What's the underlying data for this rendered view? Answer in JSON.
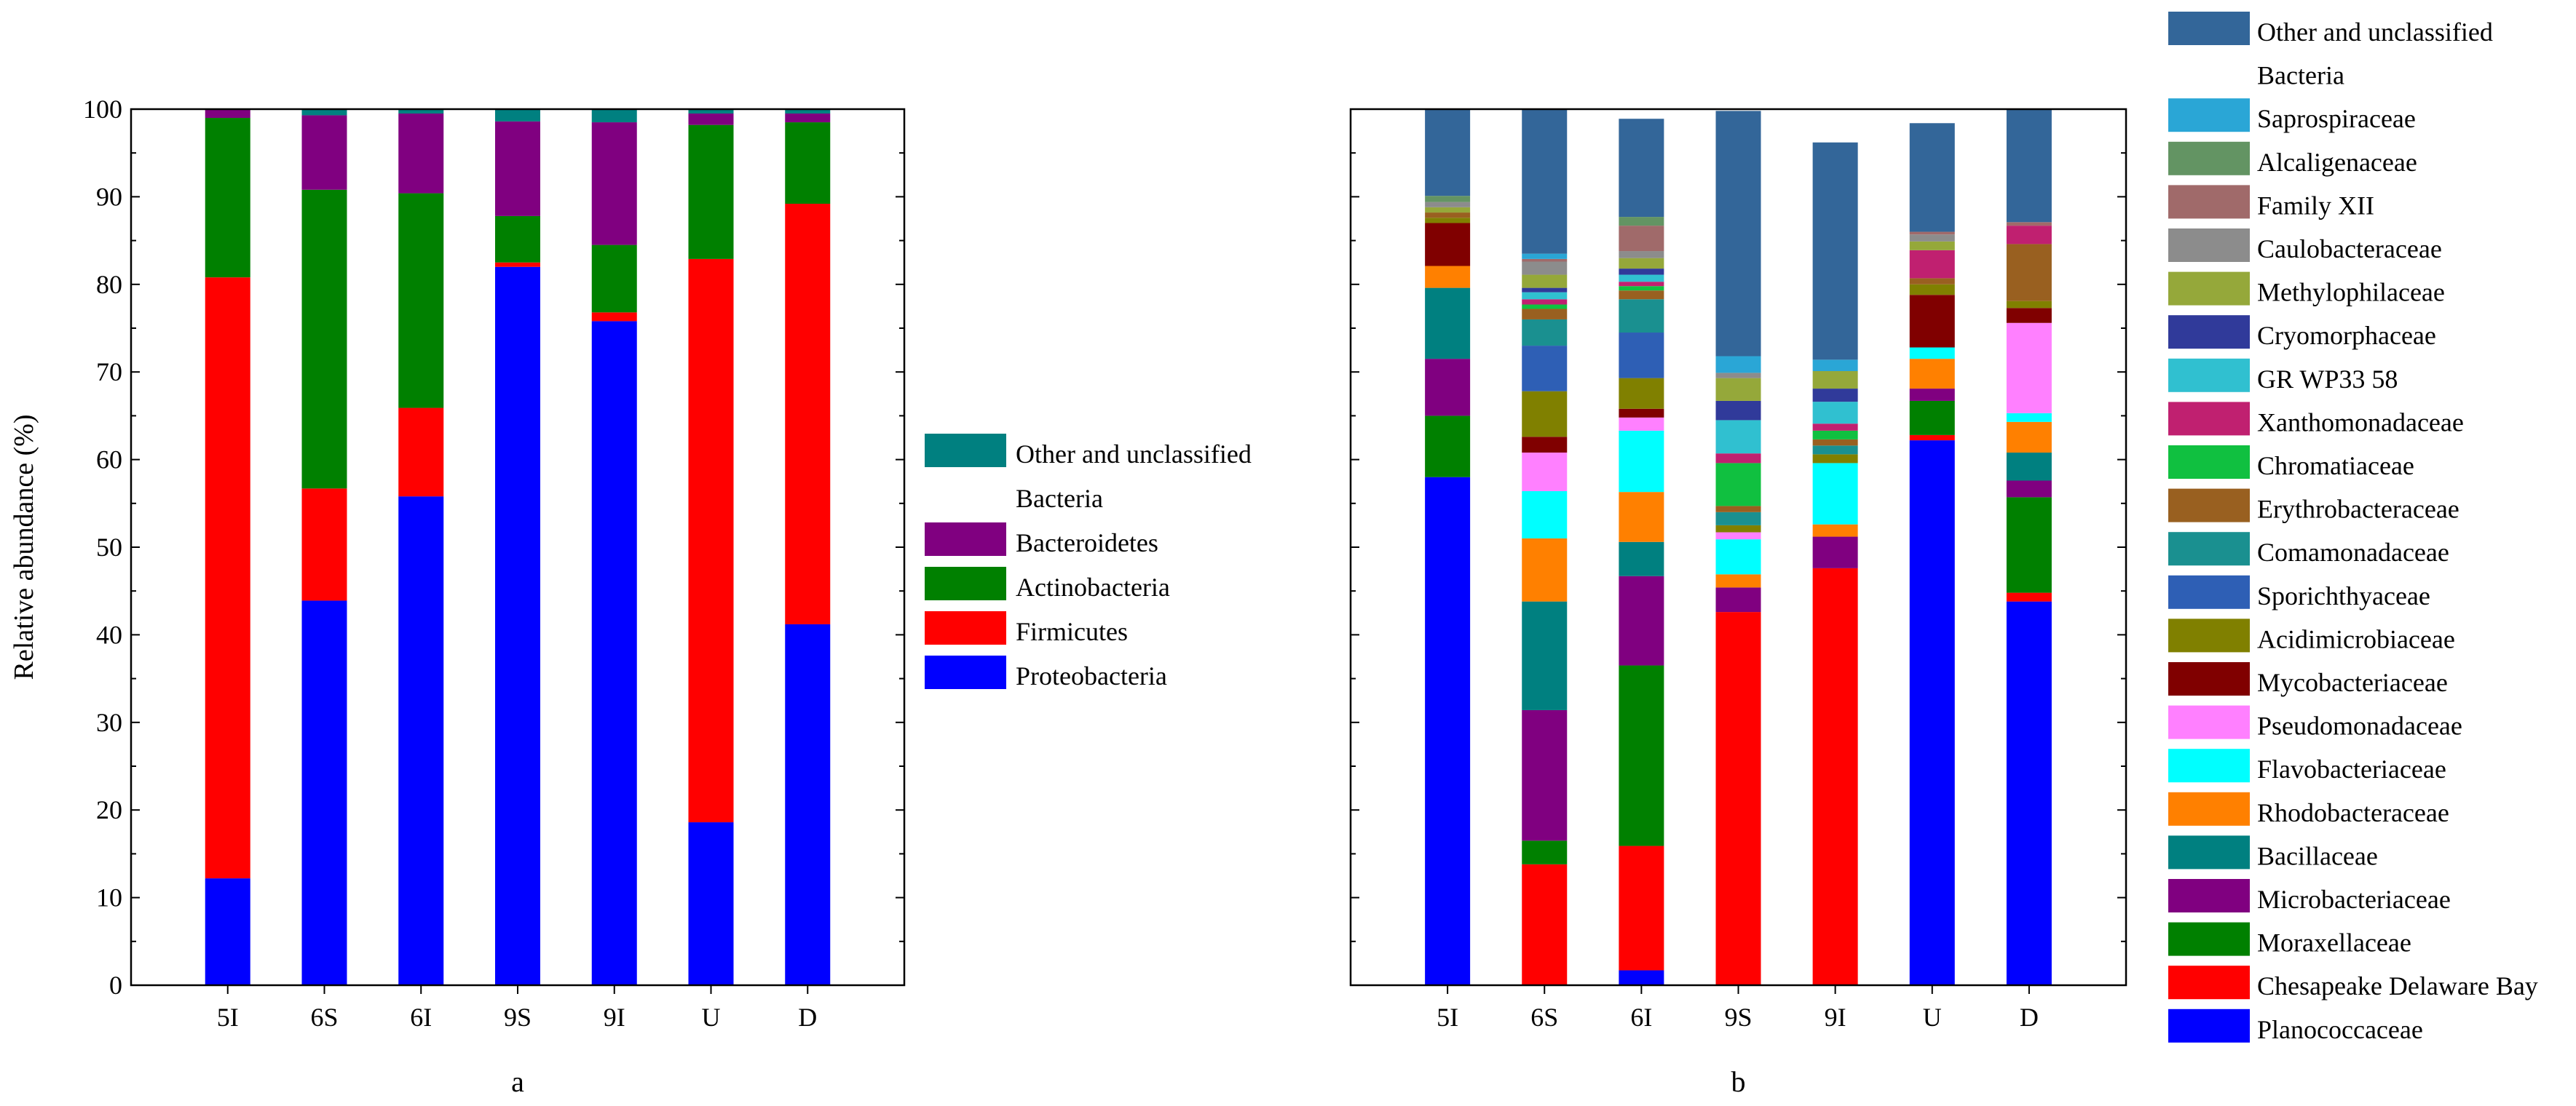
{
  "chart_data": [
    {
      "type": "bar",
      "stacked": true,
      "panel_label": "a",
      "ylabel": "Relative abundance (%)",
      "xlabel": "",
      "ylim": [
        0,
        100
      ],
      "yticks": [
        "0",
        "10",
        "20",
        "30",
        "40",
        "50",
        "60",
        "70",
        "80",
        "90",
        "100"
      ],
      "categories": [
        "5I",
        "6S",
        "6I",
        "9S",
        "9I",
        "U",
        "D"
      ],
      "series": [
        {
          "name": "Proteobacteria",
          "color": "#0000FF",
          "values": [
            12.2,
            43.9,
            55.8,
            82.0,
            75.8,
            18.6,
            41.2
          ]
        },
        {
          "name": "Firmicutes",
          "color": "#FF0000",
          "values": [
            68.6,
            12.8,
            10.1,
            0.5,
            1.0,
            64.3,
            48.0
          ]
        },
        {
          "name": "Actinobacteria",
          "color": "#008000",
          "values": [
            18.2,
            34.1,
            24.5,
            5.3,
            7.7,
            15.3,
            9.3
          ]
        },
        {
          "name": "Bacteroidetes",
          "color": "#800080",
          "values": [
            1.0,
            8.5,
            9.1,
            10.8,
            14.0,
            1.3,
            1.0
          ]
        },
        {
          "name": "Other and unclassified Bacteria",
          "color": "#008080",
          "values": [
            0.0,
            0.7,
            0.5,
            1.4,
            1.5,
            0.5,
            0.5
          ]
        }
      ],
      "legend_position": "right"
    },
    {
      "type": "bar",
      "stacked": true,
      "panel_label": "b",
      "xlabel": "",
      "ylim": [
        0,
        100
      ],
      "categories": [
        "5I",
        "6S",
        "6I",
        "9S",
        "9I",
        "U",
        "D"
      ],
      "series": [
        {
          "name": "Planococcaceae",
          "color": "#0000FF",
          "values": [
            58.0,
            0.0,
            1.7,
            0.0,
            0.0,
            62.2,
            43.8
          ]
        },
        {
          "name": "Chesapeake Delaware Bay",
          "color": "#FF0000",
          "values": [
            0.0,
            13.8,
            14.2,
            42.6,
            47.6,
            0.6,
            1.0
          ]
        },
        {
          "name": "Moraxellaceae",
          "color": "#008000",
          "values": [
            7.0,
            2.7,
            20.6,
            0.0,
            0.0,
            3.9,
            10.9
          ]
        },
        {
          "name": "Microbacteriaceae",
          "color": "#800080",
          "values": [
            6.5,
            14.9,
            10.2,
            2.8,
            3.6,
            1.4,
            1.9
          ]
        },
        {
          "name": "Bacillaceae",
          "color": "#008080",
          "values": [
            8.1,
            12.4,
            3.9,
            0.0,
            0.0,
            0.0,
            3.2
          ]
        },
        {
          "name": "Rhodobacteraceae",
          "color": "#FF8000",
          "values": [
            2.5,
            7.2,
            5.7,
            1.5,
            1.4,
            3.4,
            3.5
          ]
        },
        {
          "name": "Flavobacteriaceae",
          "color": "#00FFFF",
          "values": [
            0.0,
            5.4,
            7.0,
            4.0,
            7.0,
            1.3,
            1.0
          ]
        },
        {
          "name": "Pseudomonadaceae",
          "color": "#FF80FF",
          "values": [
            0.0,
            4.4,
            1.5,
            0.8,
            0.0,
            0.0,
            10.3
          ]
        },
        {
          "name": "Mycobacteriaceae",
          "color": "#800000",
          "values": [
            4.9,
            1.8,
            1.0,
            0.0,
            0.0,
            6.0,
            1.7
          ]
        },
        {
          "name": "Acidimicrobiaceae",
          "color": "#808000",
          "values": [
            0.6,
            5.2,
            3.5,
            0.8,
            1.0,
            1.2,
            0.8
          ]
        },
        {
          "name": "Sporichthyaceae",
          "color": "#2E5FB5",
          "values": [
            0.0,
            5.2,
            5.2,
            0.0,
            0.0,
            0.0,
            0.0
          ]
        },
        {
          "name": "Comamonadaceae",
          "color": "#1A9090",
          "values": [
            0.0,
            3.0,
            3.8,
            1.5,
            1.0,
            0.0,
            0.0
          ]
        },
        {
          "name": "Erythrobacteraceae",
          "color": "#996020",
          "values": [
            0.6,
            1.2,
            1.0,
            0.7,
            0.7,
            0.7,
            6.5
          ]
        },
        {
          "name": "Chromatiaceae",
          "color": "#10C040",
          "values": [
            0.0,
            0.5,
            0.5,
            4.9,
            1.0,
            0.0,
            0.0
          ]
        },
        {
          "name": "Xanthomonadaceae",
          "color": "#C02070",
          "values": [
            0.0,
            0.6,
            0.5,
            1.1,
            0.8,
            3.2,
            2.1
          ]
        },
        {
          "name": "GR WP33 58",
          "color": "#30C0D0",
          "values": [
            0.0,
            0.8,
            0.8,
            3.8,
            2.5,
            0.0,
            0.0
          ]
        },
        {
          "name": "Cryomorphaceae",
          "color": "#303A9A",
          "values": [
            0.0,
            0.5,
            0.7,
            2.2,
            1.5,
            0.0,
            0.0
          ]
        },
        {
          "name": "Methylophilaceae",
          "color": "#95A83A",
          "values": [
            0.6,
            1.5,
            1.2,
            2.6,
            2.0,
            1.0,
            0.0
          ]
        },
        {
          "name": "Caulobacteraceae",
          "color": "#8C8C8C",
          "values": [
            0.6,
            1.5,
            0.8,
            0.6,
            0.0,
            0.8,
            0.0
          ]
        },
        {
          "name": "Family XII",
          "color": "#A06A6A",
          "values": [
            0.0,
            0.3,
            2.9,
            0.0,
            0.0,
            0.3,
            0.4
          ]
        },
        {
          "name": "Alcaligenaceae",
          "color": "#639463",
          "values": [
            0.7,
            0.0,
            1.0,
            0.0,
            0.0,
            0.0,
            0.0
          ]
        },
        {
          "name": "Saprospiraceae",
          "color": "#2AA6D6",
          "values": [
            0.0,
            0.6,
            0.0,
            1.9,
            1.3,
            0.0,
            0.0
          ]
        },
        {
          "name": "Other and unclassified Bacteria",
          "color": "#336699",
          "values": [
            10.6,
            18.2,
            11.2,
            28.0,
            24.8,
            12.4,
            13.9
          ]
        }
      ],
      "legend_position": "right"
    }
  ]
}
